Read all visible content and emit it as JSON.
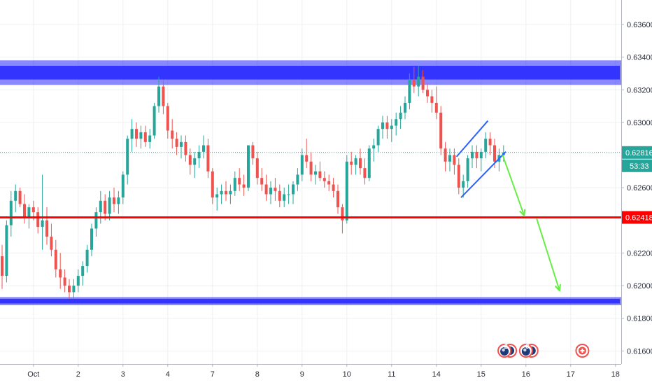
{
  "chart_data": {
    "type": "candlestick",
    "y_axis": {
      "min": 0.6152,
      "max": 0.6375,
      "ticks": [
        "0.63600",
        "0.63400",
        "0.63200",
        "0.63000",
        "0.62600",
        "0.62200",
        "0.62000",
        "0.61800",
        "0.61600"
      ],
      "position": "right"
    },
    "x_axis": {
      "ticks": [
        {
          "label": "Oct",
          "idx": 7
        },
        {
          "label": "2",
          "idx": 17
        },
        {
          "label": "3",
          "idx": 27
        },
        {
          "label": "4",
          "idx": 37
        },
        {
          "label": "7",
          "idx": 47
        },
        {
          "label": "8",
          "idx": 57
        },
        {
          "label": "9",
          "idx": 67
        },
        {
          "label": "10",
          "idx": 77
        },
        {
          "label": "11",
          "idx": 87
        },
        {
          "label": "14",
          "idx": 97
        },
        {
          "label": "15",
          "idx": 107
        },
        {
          "label": "16",
          "idx": 117
        },
        {
          "label": "17",
          "idx": 127
        },
        {
          "label": "18",
          "idx": 137
        }
      ]
    },
    "current_price": {
      "value": 0.62816,
      "label": "0.62816",
      "countdown": "53:33",
      "color": "#26a69a"
    },
    "level_line": {
      "value": 0.62418,
      "label": "0.62418",
      "color": "#ff0000"
    },
    "zones": [
      {
        "top": 0.6338,
        "bottom": 0.6323,
        "color": "#2626ff"
      },
      {
        "top": 0.6193,
        "bottom": 0.6188,
        "color": "#2626ff"
      }
    ],
    "channel_lines": [
      {
        "p1": [
          101.5,
          0.6279
        ],
        "p2": [
          108.5,
          0.6301
        ],
        "color": "#2962ff"
      },
      {
        "p1": [
          102.5,
          0.6254
        ],
        "p2": [
          112.5,
          0.6282
        ],
        "color": "#2962ff"
      }
    ],
    "arrows": [
      {
        "from": [
          111.8,
          0.628
        ],
        "to": [
          116.6,
          0.6243
        ],
        "color": "#66ee44"
      },
      {
        "from": [
          119.4,
          0.6241
        ],
        "to": [
          124.5,
          0.6197
        ],
        "color": "#66ee44"
      }
    ],
    "event_markers": [
      {
        "idx": 112.2,
        "label": "2",
        "kind": "flag"
      },
      {
        "idx": 117.0,
        "label": "3",
        "kind": "flag"
      },
      {
        "idx": 129.6,
        "label": "",
        "kind": "plus"
      }
    ],
    "candles": [
      [
        0.6218,
        0.6225,
        0.6198,
        0.6206
      ],
      [
        0.6206,
        0.624,
        0.6202,
        0.6237
      ],
      [
        0.6237,
        0.6258,
        0.623,
        0.6252
      ],
      [
        0.6252,
        0.6262,
        0.6245,
        0.6258
      ],
      [
        0.6258,
        0.626,
        0.6248,
        0.625
      ],
      [
        0.625,
        0.6256,
        0.6238,
        0.6242
      ],
      [
        0.6242,
        0.625,
        0.6235,
        0.6248
      ],
      [
        0.6248,
        0.6252,
        0.624,
        0.6245
      ],
      [
        0.6245,
        0.6248,
        0.6232,
        0.6236
      ],
      [
        0.6236,
        0.6268,
        0.6222,
        0.624
      ],
      [
        0.624,
        0.6248,
        0.6225,
        0.623
      ],
      [
        0.623,
        0.6238,
        0.6218,
        0.6222
      ],
      [
        0.6222,
        0.6228,
        0.6205,
        0.621
      ],
      [
        0.621,
        0.622,
        0.6198,
        0.6205
      ],
      [
        0.6205,
        0.621,
        0.6196,
        0.62
      ],
      [
        0.62,
        0.6204,
        0.6192,
        0.6196
      ],
      [
        0.6196,
        0.6204,
        0.6192,
        0.62
      ],
      [
        0.62,
        0.621,
        0.6196,
        0.6206
      ],
      [
        0.6206,
        0.6215,
        0.62,
        0.6212
      ],
      [
        0.6212,
        0.6225,
        0.6208,
        0.6222
      ],
      [
        0.6222,
        0.6238,
        0.6218,
        0.6235
      ],
      [
        0.6235,
        0.6248,
        0.623,
        0.6245
      ],
      [
        0.6245,
        0.6258,
        0.6238,
        0.6252
      ],
      [
        0.6252,
        0.6256,
        0.624,
        0.6244
      ],
      [
        0.6244,
        0.6258,
        0.624,
        0.6254
      ],
      [
        0.6254,
        0.626,
        0.6245,
        0.625
      ],
      [
        0.625,
        0.6258,
        0.6244,
        0.6254
      ],
      [
        0.6254,
        0.627,
        0.625,
        0.6268
      ],
      [
        0.6268,
        0.6292,
        0.6262,
        0.629
      ],
      [
        0.629,
        0.6302,
        0.6282,
        0.6296
      ],
      [
        0.6296,
        0.63,
        0.6285,
        0.629
      ],
      [
        0.629,
        0.6298,
        0.6284,
        0.6294
      ],
      [
        0.6294,
        0.6298,
        0.6285,
        0.6288
      ],
      [
        0.6288,
        0.6296,
        0.6284,
        0.6292
      ],
      [
        0.6292,
        0.6312,
        0.629,
        0.631
      ],
      [
        0.631,
        0.6328,
        0.6306,
        0.6322
      ],
      [
        0.6322,
        0.6326,
        0.6305,
        0.631
      ],
      [
        0.631,
        0.6312,
        0.629,
        0.6295
      ],
      [
        0.6295,
        0.6302,
        0.6284,
        0.629
      ],
      [
        0.629,
        0.6294,
        0.628,
        0.6285
      ],
      [
        0.6285,
        0.6292,
        0.6278,
        0.6288
      ],
      [
        0.6288,
        0.6292,
        0.6276,
        0.628
      ],
      [
        0.628,
        0.6284,
        0.6268,
        0.6274
      ],
      [
        0.6274,
        0.6282,
        0.6266,
        0.6278
      ],
      [
        0.6278,
        0.6286,
        0.6272,
        0.6282
      ],
      [
        0.6282,
        0.6292,
        0.6278,
        0.6286
      ],
      [
        0.6286,
        0.629,
        0.6266,
        0.627
      ],
      [
        0.627,
        0.6272,
        0.625,
        0.6254
      ],
      [
        0.6254,
        0.626,
        0.6246,
        0.6256
      ],
      [
        0.6256,
        0.6262,
        0.625,
        0.6258
      ],
      [
        0.6258,
        0.6264,
        0.6252,
        0.6256
      ],
      [
        0.6256,
        0.6262,
        0.625,
        0.6258
      ],
      [
        0.6258,
        0.627,
        0.6255,
        0.6266
      ],
      [
        0.6266,
        0.6272,
        0.6258,
        0.6262
      ],
      [
        0.6262,
        0.6268,
        0.6255,
        0.626
      ],
      [
        0.626,
        0.6286,
        0.6258,
        0.6286
      ],
      [
        0.6286,
        0.6288,
        0.6274,
        0.6278
      ],
      [
        0.6278,
        0.6282,
        0.6262,
        0.6266
      ],
      [
        0.6266,
        0.6272,
        0.6258,
        0.6262
      ],
      [
        0.6262,
        0.6268,
        0.6252,
        0.6256
      ],
      [
        0.6256,
        0.6264,
        0.625,
        0.626
      ],
      [
        0.626,
        0.6266,
        0.6252,
        0.6258
      ],
      [
        0.6258,
        0.6262,
        0.6248,
        0.6252
      ],
      [
        0.6252,
        0.626,
        0.6248,
        0.6256
      ],
      [
        0.6256,
        0.6262,
        0.625,
        0.6256
      ],
      [
        0.6256,
        0.6264,
        0.625,
        0.6262
      ],
      [
        0.6262,
        0.6272,
        0.6258,
        0.6268
      ],
      [
        0.6268,
        0.6284,
        0.6264,
        0.628
      ],
      [
        0.628,
        0.629,
        0.6272,
        0.6276
      ],
      [
        0.6276,
        0.6282,
        0.6264,
        0.6268
      ],
      [
        0.6268,
        0.6274,
        0.6262,
        0.627
      ],
      [
        0.627,
        0.6276,
        0.6264,
        0.6266
      ],
      [
        0.6266,
        0.627,
        0.626,
        0.6264
      ],
      [
        0.6264,
        0.6268,
        0.6258,
        0.6262
      ],
      [
        0.6262,
        0.6266,
        0.6254,
        0.6258
      ],
      [
        0.6258,
        0.6262,
        0.6244,
        0.6248
      ],
      [
        0.6248,
        0.625,
        0.6232,
        0.624
      ],
      [
        0.624,
        0.628,
        0.6238,
        0.6276
      ],
      [
        0.6276,
        0.6282,
        0.6268,
        0.6274
      ],
      [
        0.6274,
        0.628,
        0.6268,
        0.6278
      ],
      [
        0.6278,
        0.6284,
        0.6268,
        0.6272
      ],
      [
        0.6272,
        0.6278,
        0.6262,
        0.6266
      ],
      [
        0.6266,
        0.6286,
        0.6264,
        0.6284
      ],
      [
        0.6284,
        0.629,
        0.6276,
        0.6286
      ],
      [
        0.6286,
        0.6298,
        0.6282,
        0.6296
      ],
      [
        0.6296,
        0.6304,
        0.629,
        0.63
      ],
      [
        0.63,
        0.6304,
        0.629,
        0.6296
      ],
      [
        0.6296,
        0.6302,
        0.6288,
        0.6298
      ],
      [
        0.6298,
        0.6306,
        0.6292,
        0.6302
      ],
      [
        0.6302,
        0.631,
        0.6296,
        0.6306
      ],
      [
        0.6306,
        0.6316,
        0.6302,
        0.6312
      ],
      [
        0.6312,
        0.633,
        0.6308,
        0.6326
      ],
      [
        0.6326,
        0.6334,
        0.6318,
        0.6322
      ],
      [
        0.6322,
        0.6335,
        0.6316,
        0.6328
      ],
      [
        0.6328,
        0.6332,
        0.6318,
        0.632
      ],
      [
        0.632,
        0.6324,
        0.6312,
        0.6316
      ],
      [
        0.6316,
        0.632,
        0.6306,
        0.6312
      ],
      [
        0.6312,
        0.6322,
        0.6302,
        0.6306
      ],
      [
        0.6306,
        0.631,
        0.628,
        0.6284
      ],
      [
        0.6284,
        0.6288,
        0.627,
        0.6276
      ],
      [
        0.6276,
        0.6284,
        0.627,
        0.628
      ],
      [
        0.628,
        0.6284,
        0.6268,
        0.6274
      ],
      [
        0.6274,
        0.6278,
        0.6256,
        0.626
      ],
      [
        0.626,
        0.6268,
        0.6254,
        0.6264
      ],
      [
        0.6264,
        0.628,
        0.626,
        0.6278
      ],
      [
        0.6278,
        0.6286,
        0.6272,
        0.6282
      ],
      [
        0.6282,
        0.6286,
        0.6272,
        0.6278
      ],
      [
        0.6278,
        0.6284,
        0.627,
        0.6282
      ],
      [
        0.6282,
        0.6294,
        0.6278,
        0.629
      ],
      [
        0.629,
        0.6294,
        0.628,
        0.6286
      ],
      [
        0.6286,
        0.629,
        0.6272,
        0.6276
      ],
      [
        0.6276,
        0.6284,
        0.627,
        0.628
      ],
      [
        0.628,
        0.6286,
        0.6276,
        0.62816
      ]
    ]
  }
}
